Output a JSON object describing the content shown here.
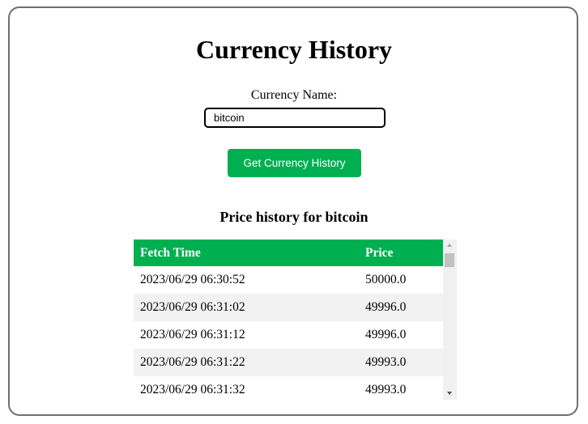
{
  "page": {
    "title": "Currency History",
    "field_label": "Currency Name:",
    "input_value": "bitcoin",
    "button_label": "Get Currency History",
    "subtitle": "Price history for bitcoin"
  },
  "table": {
    "headers": [
      "Fetch Time",
      "Price"
    ],
    "rows": [
      [
        "2023/06/29 06:30:52",
        "50000.0"
      ],
      [
        "2023/06/29 06:31:02",
        "49996.0"
      ],
      [
        "2023/06/29 06:31:12",
        "49996.0"
      ],
      [
        "2023/06/29 06:31:22",
        "49993.0"
      ],
      [
        "2023/06/29 06:31:32",
        "49993.0"
      ]
    ]
  },
  "colors": {
    "accent": "#00b050",
    "row_alt": "#f2f2f2",
    "border": "#6f6f6f"
  }
}
